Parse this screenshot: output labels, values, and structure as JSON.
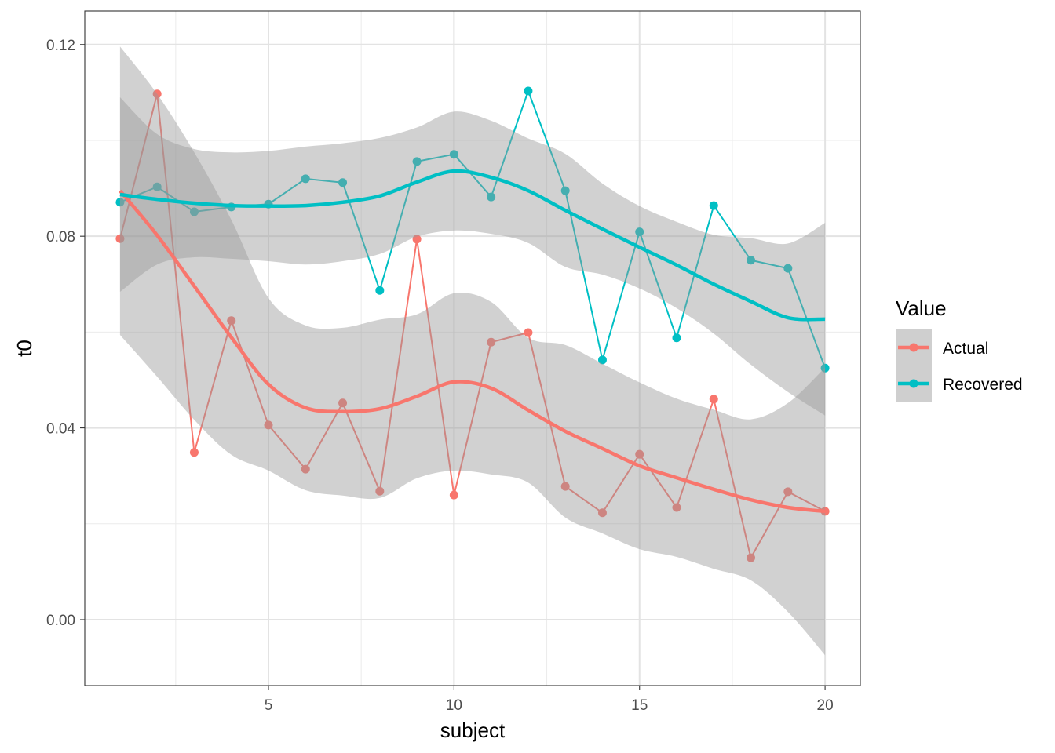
{
  "chart_data": {
    "type": "line",
    "title": "",
    "xlabel": "subject",
    "ylabel": "t0",
    "xlim": [
      0.05,
      20.95
    ],
    "ylim": [
      -0.01375,
      0.127
    ],
    "x_ticks": [
      5,
      10,
      15,
      20
    ],
    "x_tick_labels": [
      "5",
      "10",
      "15",
      "20"
    ],
    "y_ticks": [
      0,
      0.04,
      0.08,
      0.12
    ],
    "y_tick_labels": [
      "0.00",
      "0.04",
      "0.08",
      "0.12"
    ],
    "grid": true,
    "legend": {
      "title": "Value",
      "placement": "right",
      "entries": [
        "Actual",
        "Recovered"
      ]
    },
    "x": [
      1,
      2,
      3,
      4,
      5,
      6,
      7,
      8,
      9,
      10,
      11,
      12,
      13,
      14,
      15,
      16,
      17,
      18,
      19,
      20
    ],
    "series": [
      {
        "name": "Actual",
        "color": "#F8766D",
        "values": [
          0.0795,
          0.1097,
          0.0349,
          0.0624,
          0.0406,
          0.0314,
          0.0452,
          0.0268,
          0.0794,
          0.026,
          0.0579,
          0.0599,
          0.0278,
          0.0223,
          0.0345,
          0.0234,
          0.046,
          0.0129,
          0.0267,
          0.0226
        ],
        "smooth": [
          0.0895,
          0.0802,
          0.0696,
          0.0589,
          0.0491,
          0.0442,
          0.0434,
          0.044,
          0.0466,
          0.0496,
          0.0483,
          0.0437,
          0.0393,
          0.0357,
          0.0321,
          0.0296,
          0.0272,
          0.025,
          0.0234,
          0.0226
        ],
        "smooth_lower": [
          0.0594,
          0.0507,
          0.0417,
          0.0344,
          0.0311,
          0.027,
          0.0259,
          0.0254,
          0.0295,
          0.0311,
          0.0303,
          0.0286,
          0.0213,
          0.018,
          0.0147,
          0.0131,
          0.0106,
          0.0082,
          0.0016,
          -0.0074
        ],
        "smooth_upper": [
          0.1196,
          0.1097,
          0.0975,
          0.0834,
          0.0671,
          0.0614,
          0.0609,
          0.0626,
          0.0637,
          0.0681,
          0.0663,
          0.0588,
          0.0573,
          0.0534,
          0.0495,
          0.0461,
          0.0438,
          0.0418,
          0.0452,
          0.0526
        ]
      },
      {
        "name": "Recovered",
        "color": "#00BFC4",
        "values": [
          0.0871,
          0.0903,
          0.0851,
          0.0861,
          0.0867,
          0.092,
          0.0912,
          0.0687,
          0.0956,
          0.0971,
          0.0882,
          0.1103,
          0.0895,
          0.0542,
          0.0809,
          0.0588,
          0.0864,
          0.075,
          0.0733,
          0.0525
        ],
        "smooth": [
          0.0887,
          0.0877,
          0.0869,
          0.0864,
          0.0863,
          0.0864,
          0.0871,
          0.0884,
          0.0913,
          0.0936,
          0.0923,
          0.0895,
          0.0854,
          0.0815,
          0.0777,
          0.074,
          0.07,
          0.0664,
          0.063,
          0.0627
        ],
        "smooth_lower": [
          0.0684,
          0.0741,
          0.0756,
          0.0753,
          0.0748,
          0.0741,
          0.0748,
          0.0763,
          0.0799,
          0.0812,
          0.0805,
          0.0786,
          0.0736,
          0.072,
          0.0691,
          0.065,
          0.0597,
          0.0532,
          0.0475,
          0.0426
        ],
        "smooth_upper": [
          0.109,
          0.1013,
          0.0982,
          0.0975,
          0.0978,
          0.0987,
          0.0994,
          0.1005,
          0.1027,
          0.106,
          0.1041,
          0.1004,
          0.0972,
          0.091,
          0.0863,
          0.083,
          0.0803,
          0.0796,
          0.0785,
          0.0828
        ]
      }
    ]
  }
}
